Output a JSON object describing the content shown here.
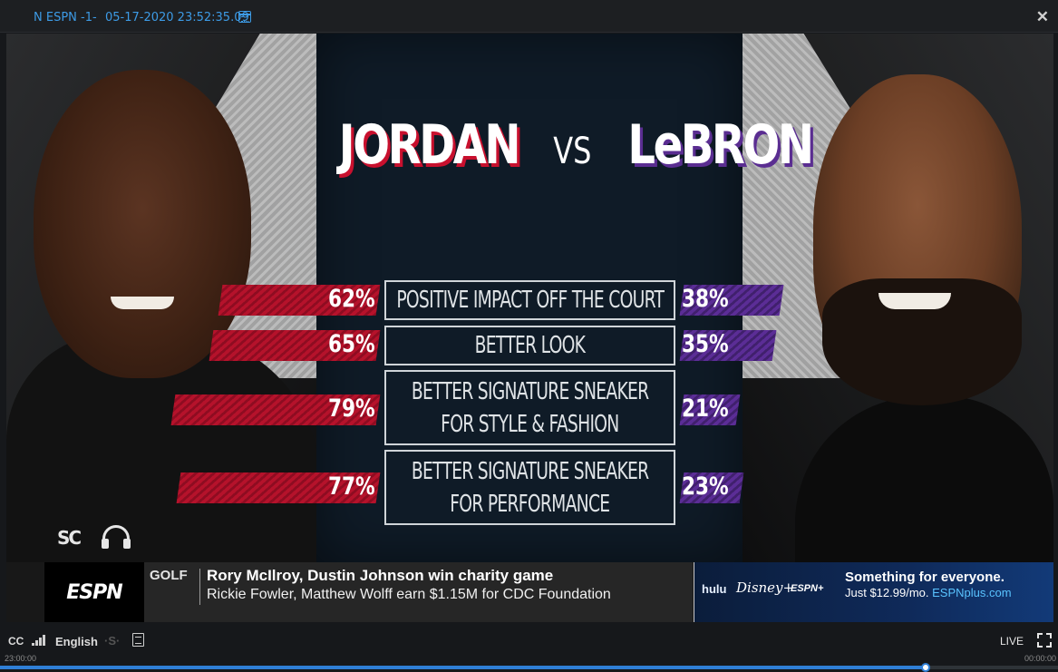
{
  "topbar": {
    "channel": "N ESPN -1-",
    "timestamp": "05-17-2020 23:52:35.09",
    "calendar_icon": "calendar-icon",
    "close_icon": "close-icon",
    "close_label": "✕"
  },
  "graphic": {
    "title_left": "JORDAN",
    "title_vs": "VS",
    "title_right": "LeBRON",
    "left_color": "#c8102e",
    "right_color": "#5a2d91",
    "stats": [
      {
        "label_lines": [
          "POSITIVE IMPACT OFF THE COURT"
        ],
        "jordan": "62%",
        "lebron": "38%"
      },
      {
        "label_lines": [
          "BETTER LOOK"
        ],
        "jordan": "65%",
        "lebron": "35%"
      },
      {
        "label_lines": [
          "BETTER SIGNATURE SNEAKER",
          "FOR STYLE & FASHION"
        ],
        "jordan": "79%",
        "lebron": "21%"
      },
      {
        "label_lines": [
          "BETTER SIGNATURE SNEAKER",
          "FOR PERFORMANCE"
        ],
        "jordan": "77%",
        "lebron": "23%"
      }
    ],
    "show_logo": "SC",
    "headphones_icon": "headphones-icon"
  },
  "ticker": {
    "network": "ESPN",
    "category": "GOLF",
    "headline": "Rory McIlroy, Dustin Johnson win charity game",
    "subline": "Rickie Fowler, Matthew Wolff earn $1.15M for CDC Foundation",
    "ad": {
      "brand_hulu": "hulu",
      "brand_disney": "Disney+",
      "brand_espn": "ESPN+",
      "line1": "Something for everyone.",
      "line2_prefix": "Just $12.99/mo.",
      "line2_url": "ESPNplus.com"
    }
  },
  "controls": {
    "cc": "CC",
    "signal_icon": "signal-bars-icon",
    "language": "English",
    "s_label": "·S·",
    "transcript_icon": "document-icon",
    "live": "LIVE",
    "fullscreen_icon": "fullscreen-icon",
    "time_start": "23:00:00",
    "time_end": "00:00:00",
    "progress_fraction": 0.875
  }
}
